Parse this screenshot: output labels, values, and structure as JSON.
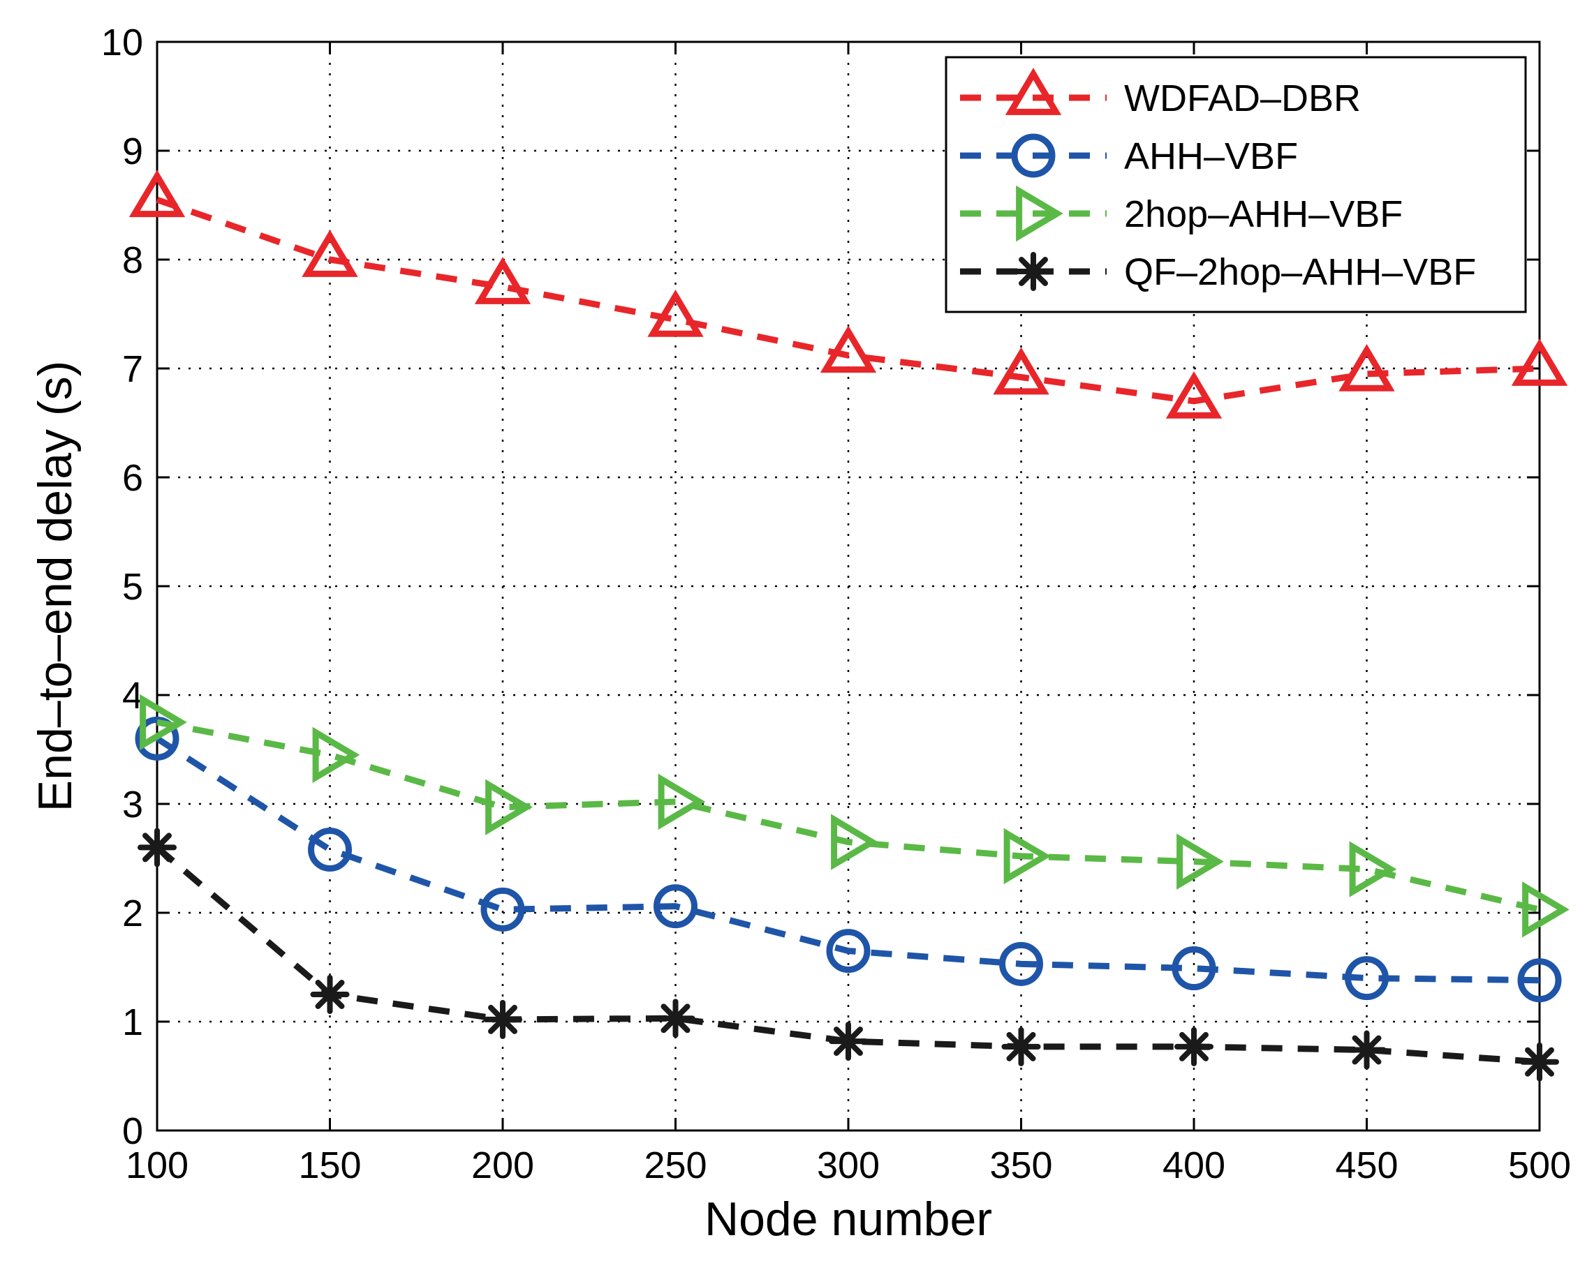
{
  "chart_data": {
    "type": "line",
    "title": "",
    "xlabel": "Node number",
    "ylabel": "End–to–end delay (s)",
    "xlim": [
      100,
      500
    ],
    "ylim": [
      0,
      10
    ],
    "xticks": [
      "100",
      "150",
      "200",
      "250",
      "300",
      "350",
      "400",
      "450",
      "500"
    ],
    "yticks": [
      "0",
      "1",
      "2",
      "3",
      "4",
      "5",
      "6",
      "7",
      "8",
      "9",
      "10"
    ],
    "grid": true,
    "legend_position": "top-right",
    "x": [
      100,
      150,
      200,
      250,
      300,
      350,
      400,
      450,
      500
    ],
    "series": [
      {
        "name": "WDFAD–DBR",
        "color": "#e8262a",
        "marker": "triangle-up",
        "values": [
          8.55,
          8.0,
          7.75,
          7.45,
          7.12,
          6.92,
          6.7,
          6.95,
          7.0
        ]
      },
      {
        "name": "AHH–VBF",
        "color": "#1f55a8",
        "marker": "circle",
        "values": [
          3.6,
          2.58,
          2.03,
          2.06,
          1.65,
          1.53,
          1.49,
          1.4,
          1.38
        ]
      },
      {
        "name": "2hop–AHH–VBF",
        "color": "#5ab946",
        "marker": "triangle-right",
        "values": [
          3.75,
          3.45,
          2.97,
          3.02,
          2.65,
          2.52,
          2.47,
          2.4,
          2.03
        ]
      },
      {
        "name": "QF–2hop–AHH–VBF",
        "color": "#1a1a1a",
        "marker": "asterisk",
        "values": [
          2.6,
          1.25,
          1.02,
          1.03,
          0.82,
          0.77,
          0.77,
          0.74,
          0.63
        ]
      }
    ]
  }
}
